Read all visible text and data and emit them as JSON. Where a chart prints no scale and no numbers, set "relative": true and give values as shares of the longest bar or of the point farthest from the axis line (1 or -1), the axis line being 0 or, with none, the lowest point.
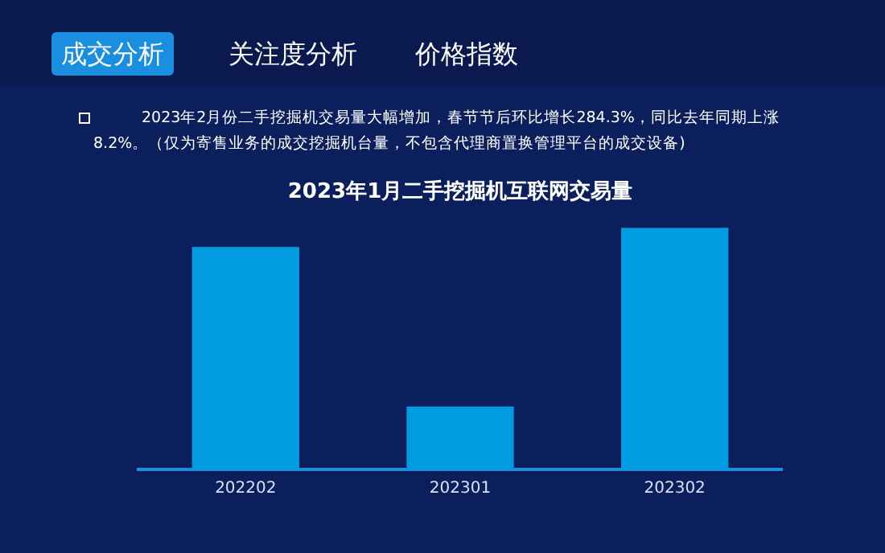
{
  "chart_data": {
    "type": "bar",
    "title": "2023年1月二手挖掘机互联网交易量",
    "categories": [
      "202202",
      "202301",
      "202302"
    ],
    "values": [
      0.92,
      0.26,
      1
    ],
    "color": "#009be0",
    "relative": true,
    "grid": false,
    "legend": false,
    "annotations": [
      "成交分析",
      "关注度分析",
      "价格指数",
      "2023年2月份二手挖掘机交易量大幅增加，春节节后环比增长284.3%，同比去年同期上涨8.2%。（仅为寄售业务的成交挖掘机台量，不包含代理商置换管理平台的成交设备)"
    ]
  }
}
